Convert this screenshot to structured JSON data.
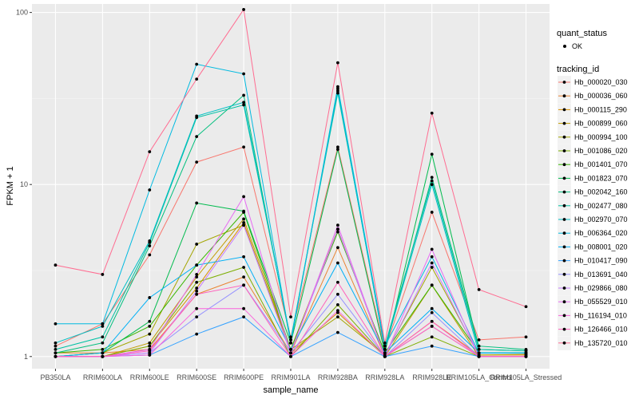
{
  "chart_data": {
    "type": "line",
    "xlabel": "sample_name",
    "ylabel": "FPKM + 1",
    "y_scale": "log10",
    "ylim": [
      0.85,
      112
    ],
    "y_ticks": [
      1,
      10,
      100
    ],
    "y_tick_labels": [
      "1",
      "10",
      "100"
    ],
    "grid": true,
    "legend_position": "right",
    "categories": [
      "PB350LA",
      "RRIM600LA",
      "RRIM600LE",
      "RRIM600SE",
      "RRIM600PE",
      "RRIM901LA",
      "RRIM928BA",
      "RRIM928LA",
      "RRIM928LE",
      "RRIM105LA_Control",
      "RRIM105LA_Stressed"
    ],
    "legend_quant": {
      "title": "quant_status",
      "entries": [
        "OK"
      ]
    },
    "legend_tracking": {
      "title": "tracking_id"
    },
    "series": [
      {
        "name": "Hb_000020_030",
        "color": "#F8766D",
        "values": [
          1.15,
          1.55,
          3.9,
          13.5,
          16.5,
          1.3,
          16.5,
          1.1,
          6.9,
          1.25,
          1.3
        ]
      },
      {
        "name": "Hb_000036_060",
        "color": "#EA8331",
        "values": [
          1.05,
          1.05,
          1.1,
          2.3,
          2.9,
          1.05,
          4.3,
          1.0,
          1.6,
          1.02,
          1.02
        ]
      },
      {
        "name": "Hb_000115_290",
        "color": "#D89000",
        "values": [
          1.0,
          1.0,
          1.15,
          2.5,
          6.0,
          1.05,
          1.8,
          1.0,
          1.5,
          1.0,
          1.0
        ]
      },
      {
        "name": "Hb_000899_060",
        "color": "#C09B00",
        "values": [
          1.0,
          1.0,
          1.2,
          2.9,
          6.3,
          1.1,
          5.5,
          1.0,
          2.6,
          1.0,
          1.0
        ]
      },
      {
        "name": "Hb_000994_100",
        "color": "#A3A500",
        "values": [
          1.0,
          1.05,
          1.35,
          4.5,
          5.8,
          1.1,
          1.7,
          1.02,
          3.3,
          1.02,
          1.03
        ]
      },
      {
        "name": "Hb_001086_020",
        "color": "#7CAE00",
        "values": [
          1.0,
          1.0,
          1.15,
          2.7,
          3.3,
          1.0,
          2.0,
          1.0,
          1.3,
          1.0,
          1.0
        ]
      },
      {
        "name": "Hb_001401_070",
        "color": "#39B600",
        "values": [
          1.05,
          1.1,
          1.5,
          3.4,
          6.9,
          1.1,
          5.3,
          1.05,
          2.6,
          1.05,
          1.05
        ]
      },
      {
        "name": "Hb_001823_070",
        "color": "#00BB4E",
        "values": [
          1.0,
          1.05,
          1.6,
          7.8,
          7.0,
          1.2,
          16.0,
          1.05,
          15.0,
          1.1,
          1.08
        ]
      },
      {
        "name": "Hb_002042_160",
        "color": "#00BF7D",
        "values": [
          1.05,
          1.2,
          4.4,
          19.0,
          33.0,
          1.2,
          36.0,
          1.1,
          11.0,
          1.15,
          1.1
        ]
      },
      {
        "name": "Hb_002477_080",
        "color": "#00C1A3",
        "values": [
          1.1,
          1.3,
          4.6,
          24.5,
          29.0,
          1.25,
          34.0,
          1.15,
          10.5,
          1.1,
          1.08
        ]
      },
      {
        "name": "Hb_002970_070",
        "color": "#00BFC4",
        "values": [
          1.2,
          1.5,
          4.7,
          25.0,
          30.0,
          1.25,
          35.0,
          1.1,
          10.0,
          1.05,
          1.05
        ]
      },
      {
        "name": "Hb_006364_020",
        "color": "#00BAE0",
        "values": [
          1.55,
          1.55,
          9.3,
          50.0,
          44.0,
          1.2,
          37.0,
          1.15,
          3.8,
          1.05,
          1.05
        ]
      },
      {
        "name": "Hb_008001_020",
        "color": "#00B0F6",
        "values": [
          1.0,
          1.05,
          2.2,
          3.4,
          3.8,
          1.1,
          3.5,
          1.05,
          1.9,
          1.05,
          1.05
        ]
      },
      {
        "name": "Hb_010417_090",
        "color": "#35A2FF",
        "values": [
          1.0,
          1.0,
          1.02,
          1.35,
          1.7,
          1.0,
          1.38,
          1.0,
          1.15,
          1.0,
          1.0
        ]
      },
      {
        "name": "Hb_013691_040",
        "color": "#9590FF",
        "values": [
          1.0,
          1.0,
          1.05,
          1.7,
          2.6,
          1.05,
          2.3,
          1.0,
          1.8,
          1.0,
          1.0
        ]
      },
      {
        "name": "Hb_029866_080",
        "color": "#C77CFF",
        "values": [
          1.0,
          1.0,
          1.05,
          2.4,
          5.8,
          1.05,
          5.5,
          1.0,
          3.5,
          1.0,
          1.0
        ]
      },
      {
        "name": "Hb_055529_010",
        "color": "#E76BF3",
        "values": [
          1.0,
          1.0,
          1.1,
          3.0,
          8.5,
          1.05,
          5.8,
          1.0,
          4.2,
          1.0,
          1.0
        ]
      },
      {
        "name": "Hb_116194_010",
        "color": "#FA62DB",
        "values": [
          1.0,
          1.0,
          1.02,
          1.9,
          1.9,
          1.0,
          1.85,
          1.0,
          1.5,
          1.0,
          1.0
        ]
      },
      {
        "name": "Hb_126466_010",
        "color": "#FF62BC",
        "values": [
          1.0,
          1.0,
          1.08,
          2.3,
          2.6,
          1.0,
          2.7,
          1.0,
          1.6,
          1.0,
          1.0
        ]
      },
      {
        "name": "Hb_135720_010",
        "color": "#FF6C91",
        "values": [
          3.4,
          3.0,
          15.5,
          41.0,
          104.0,
          1.7,
          51.0,
          1.2,
          26.0,
          2.45,
          1.95
        ]
      }
    ]
  }
}
